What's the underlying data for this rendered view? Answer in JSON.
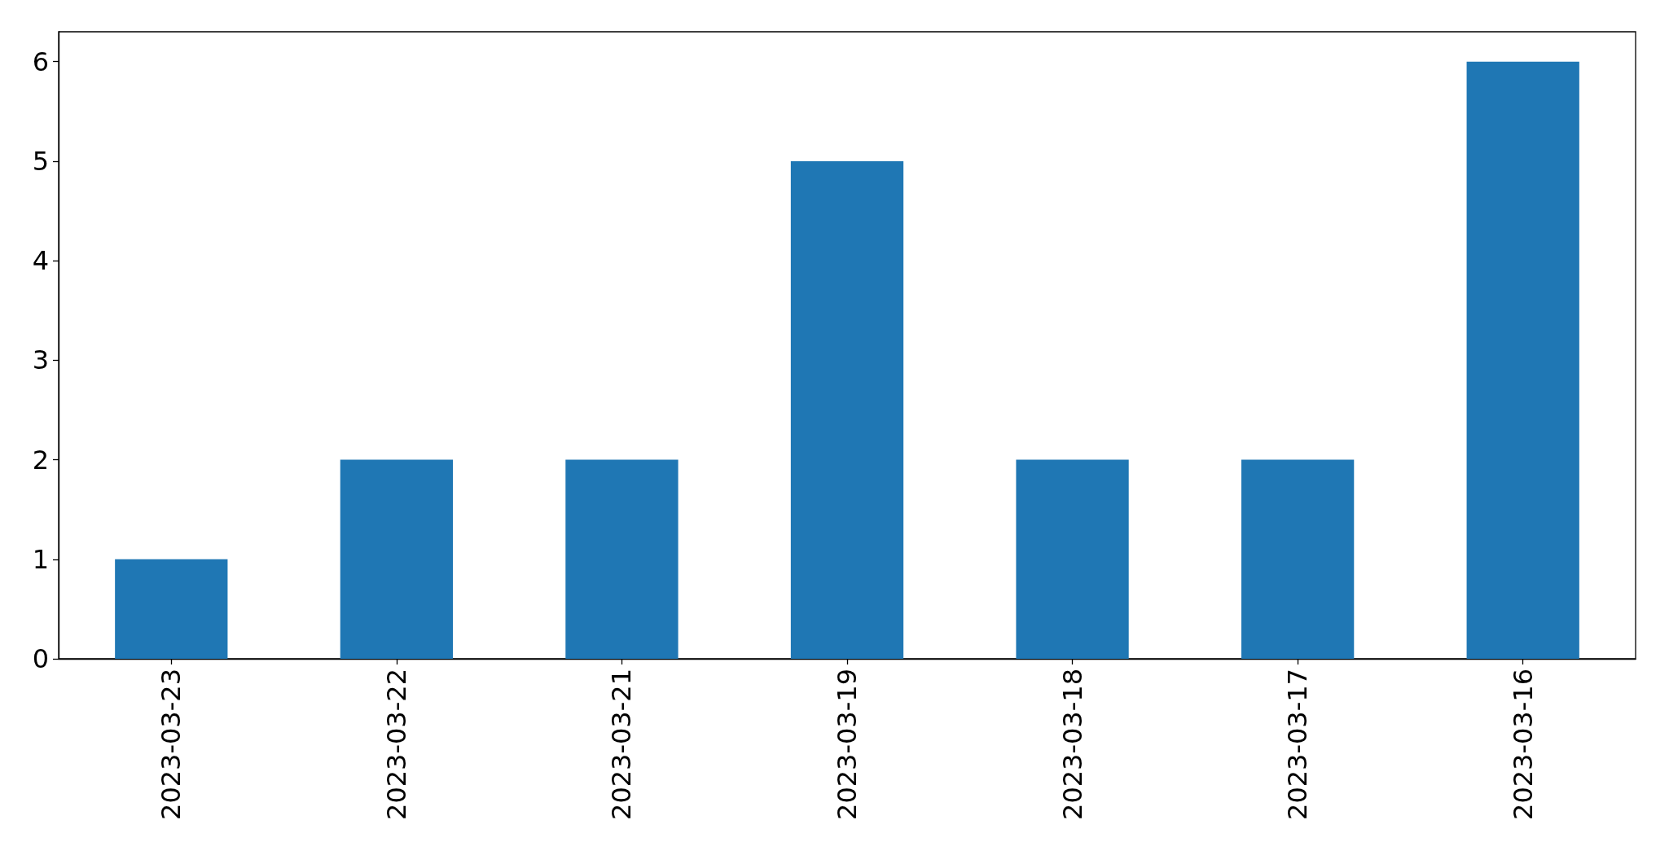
{
  "chart_data": {
    "type": "bar",
    "categories": [
      "2023-03-23",
      "2023-03-22",
      "2023-03-21",
      "2023-03-19",
      "2023-03-18",
      "2023-03-17",
      "2023-03-16"
    ],
    "values": [
      1,
      2,
      2,
      5,
      2,
      2,
      6
    ],
    "color": "#1f77b4",
    "ylim": [
      0,
      6.3
    ],
    "yticks": [
      0,
      1,
      2,
      3,
      4,
      5,
      6
    ]
  }
}
